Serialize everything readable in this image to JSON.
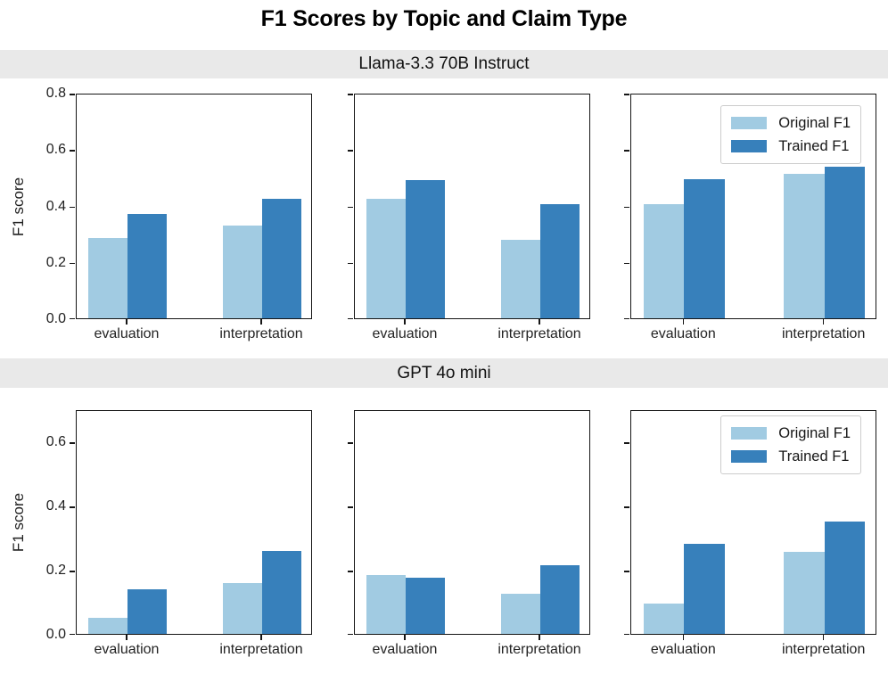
{
  "title": "F1 Scores by Topic and Claim Type",
  "ylabel": "F1 score",
  "colors": {
    "original_f1": "#a1cbe2",
    "trained_f1": "#3780bb",
    "band_bg": "#e9e9e9",
    "spine": "#151515",
    "text": "#1f1f1f",
    "legend_border": "#cccccc"
  },
  "legend": {
    "position": "upper right",
    "items": [
      {
        "label": "Original F1",
        "color_key": "original_f1"
      },
      {
        "label": "Trained F1",
        "color_key": "trained_f1"
      }
    ]
  },
  "chart_data": [
    {
      "type": "bar",
      "row_title": "Llama-3.3 70B Instruct",
      "ylabel": "F1 score",
      "ylim": [
        0,
        0.8
      ],
      "yticks": [
        0.0,
        0.2,
        0.4,
        0.6,
        0.8
      ],
      "grid": false,
      "categories": [
        "evaluation",
        "interpretation"
      ],
      "panels": [
        {
          "series": [
            {
              "name": "Original F1",
              "values": [
                0.29,
                0.335
              ]
            },
            {
              "name": "Trained F1",
              "values": [
                0.375,
                0.43
              ]
            }
          ],
          "legend": false
        },
        {
          "series": [
            {
              "name": "Original F1",
              "values": [
                0.43,
                0.285
              ]
            },
            {
              "name": "Trained F1",
              "values": [
                0.495,
                0.41
              ]
            }
          ],
          "legend": false
        },
        {
          "series": [
            {
              "name": "Original F1",
              "values": [
                0.41,
                0.52
              ]
            },
            {
              "name": "Trained F1",
              "values": [
                0.5,
                0.545
              ]
            }
          ],
          "legend": true
        }
      ]
    },
    {
      "type": "bar",
      "row_title": "GPT 4o mini",
      "ylabel": "F1 score",
      "ylim": [
        0,
        0.7
      ],
      "yticks": [
        0.0,
        0.2,
        0.4,
        0.6
      ],
      "grid": false,
      "categories": [
        "evaluation",
        "interpretation"
      ],
      "panels": [
        {
          "series": [
            {
              "name": "Original F1",
              "values": [
                0.055,
                0.165
              ]
            },
            {
              "name": "Trained F1",
              "values": [
                0.145,
                0.265
              ]
            }
          ],
          "legend": false
        },
        {
          "series": [
            {
              "name": "Original F1",
              "values": [
                0.19,
                0.13
              ]
            },
            {
              "name": "Trained F1",
              "values": [
                0.18,
                0.22
              ]
            }
          ],
          "legend": false
        },
        {
          "series": [
            {
              "name": "Original F1",
              "values": [
                0.1,
                0.26
              ]
            },
            {
              "name": "Trained F1",
              "values": [
                0.285,
                0.355
              ]
            }
          ],
          "legend": true
        }
      ]
    }
  ]
}
